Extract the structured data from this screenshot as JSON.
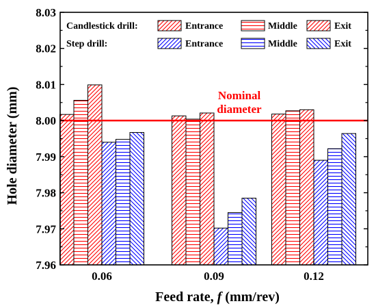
{
  "chart_data": {
    "type": "bar",
    "xlabel_prefix": "Feed rate, ",
    "xlabel_var": "f",
    "xlabel_suffix": " (mm/rev)",
    "ylabel": "Hole diameter (mm)",
    "categories": [
      "0.06",
      "0.09",
      "0.12"
    ],
    "ylim": [
      7.96,
      8.03
    ],
    "yticks": [
      "7.96",
      "7.97",
      "7.98",
      "7.99",
      "8.00",
      "8.01",
      "8.02",
      "8.03"
    ],
    "groups": [
      {
        "label": "Candlestick drill:",
        "color": "#ff0000"
      },
      {
        "label": "Step drill:",
        "color": "#0000ff"
      }
    ],
    "series": [
      {
        "name": "Entrance",
        "group": 0,
        "pattern": "diag-up",
        "values": [
          8.0017,
          8.0013,
          8.0018
        ]
      },
      {
        "name": "Middle",
        "group": 0,
        "pattern": "horiz",
        "values": [
          8.0056,
          8.0004,
          8.0027
        ]
      },
      {
        "name": "Exit",
        "group": 0,
        "pattern": "diag-up",
        "values": [
          8.0099,
          8.0021,
          8.003
        ]
      },
      {
        "name": "Entrance",
        "group": 1,
        "pattern": "diag-up",
        "values": [
          7.994,
          7.9702,
          7.989
        ]
      },
      {
        "name": "Middle",
        "group": 1,
        "pattern": "horiz",
        "values": [
          7.9948,
          7.9745,
          7.9922
        ]
      },
      {
        "name": "Exit",
        "group": 1,
        "pattern": "diag-down",
        "values": [
          7.9967,
          7.9785,
          7.9964
        ]
      }
    ],
    "reference_line": {
      "value": 8.0,
      "label_line1": "Nominal",
      "label_line2": "diameter",
      "color": "#ff0000"
    },
    "legend_position": "top",
    "grid": false
  }
}
